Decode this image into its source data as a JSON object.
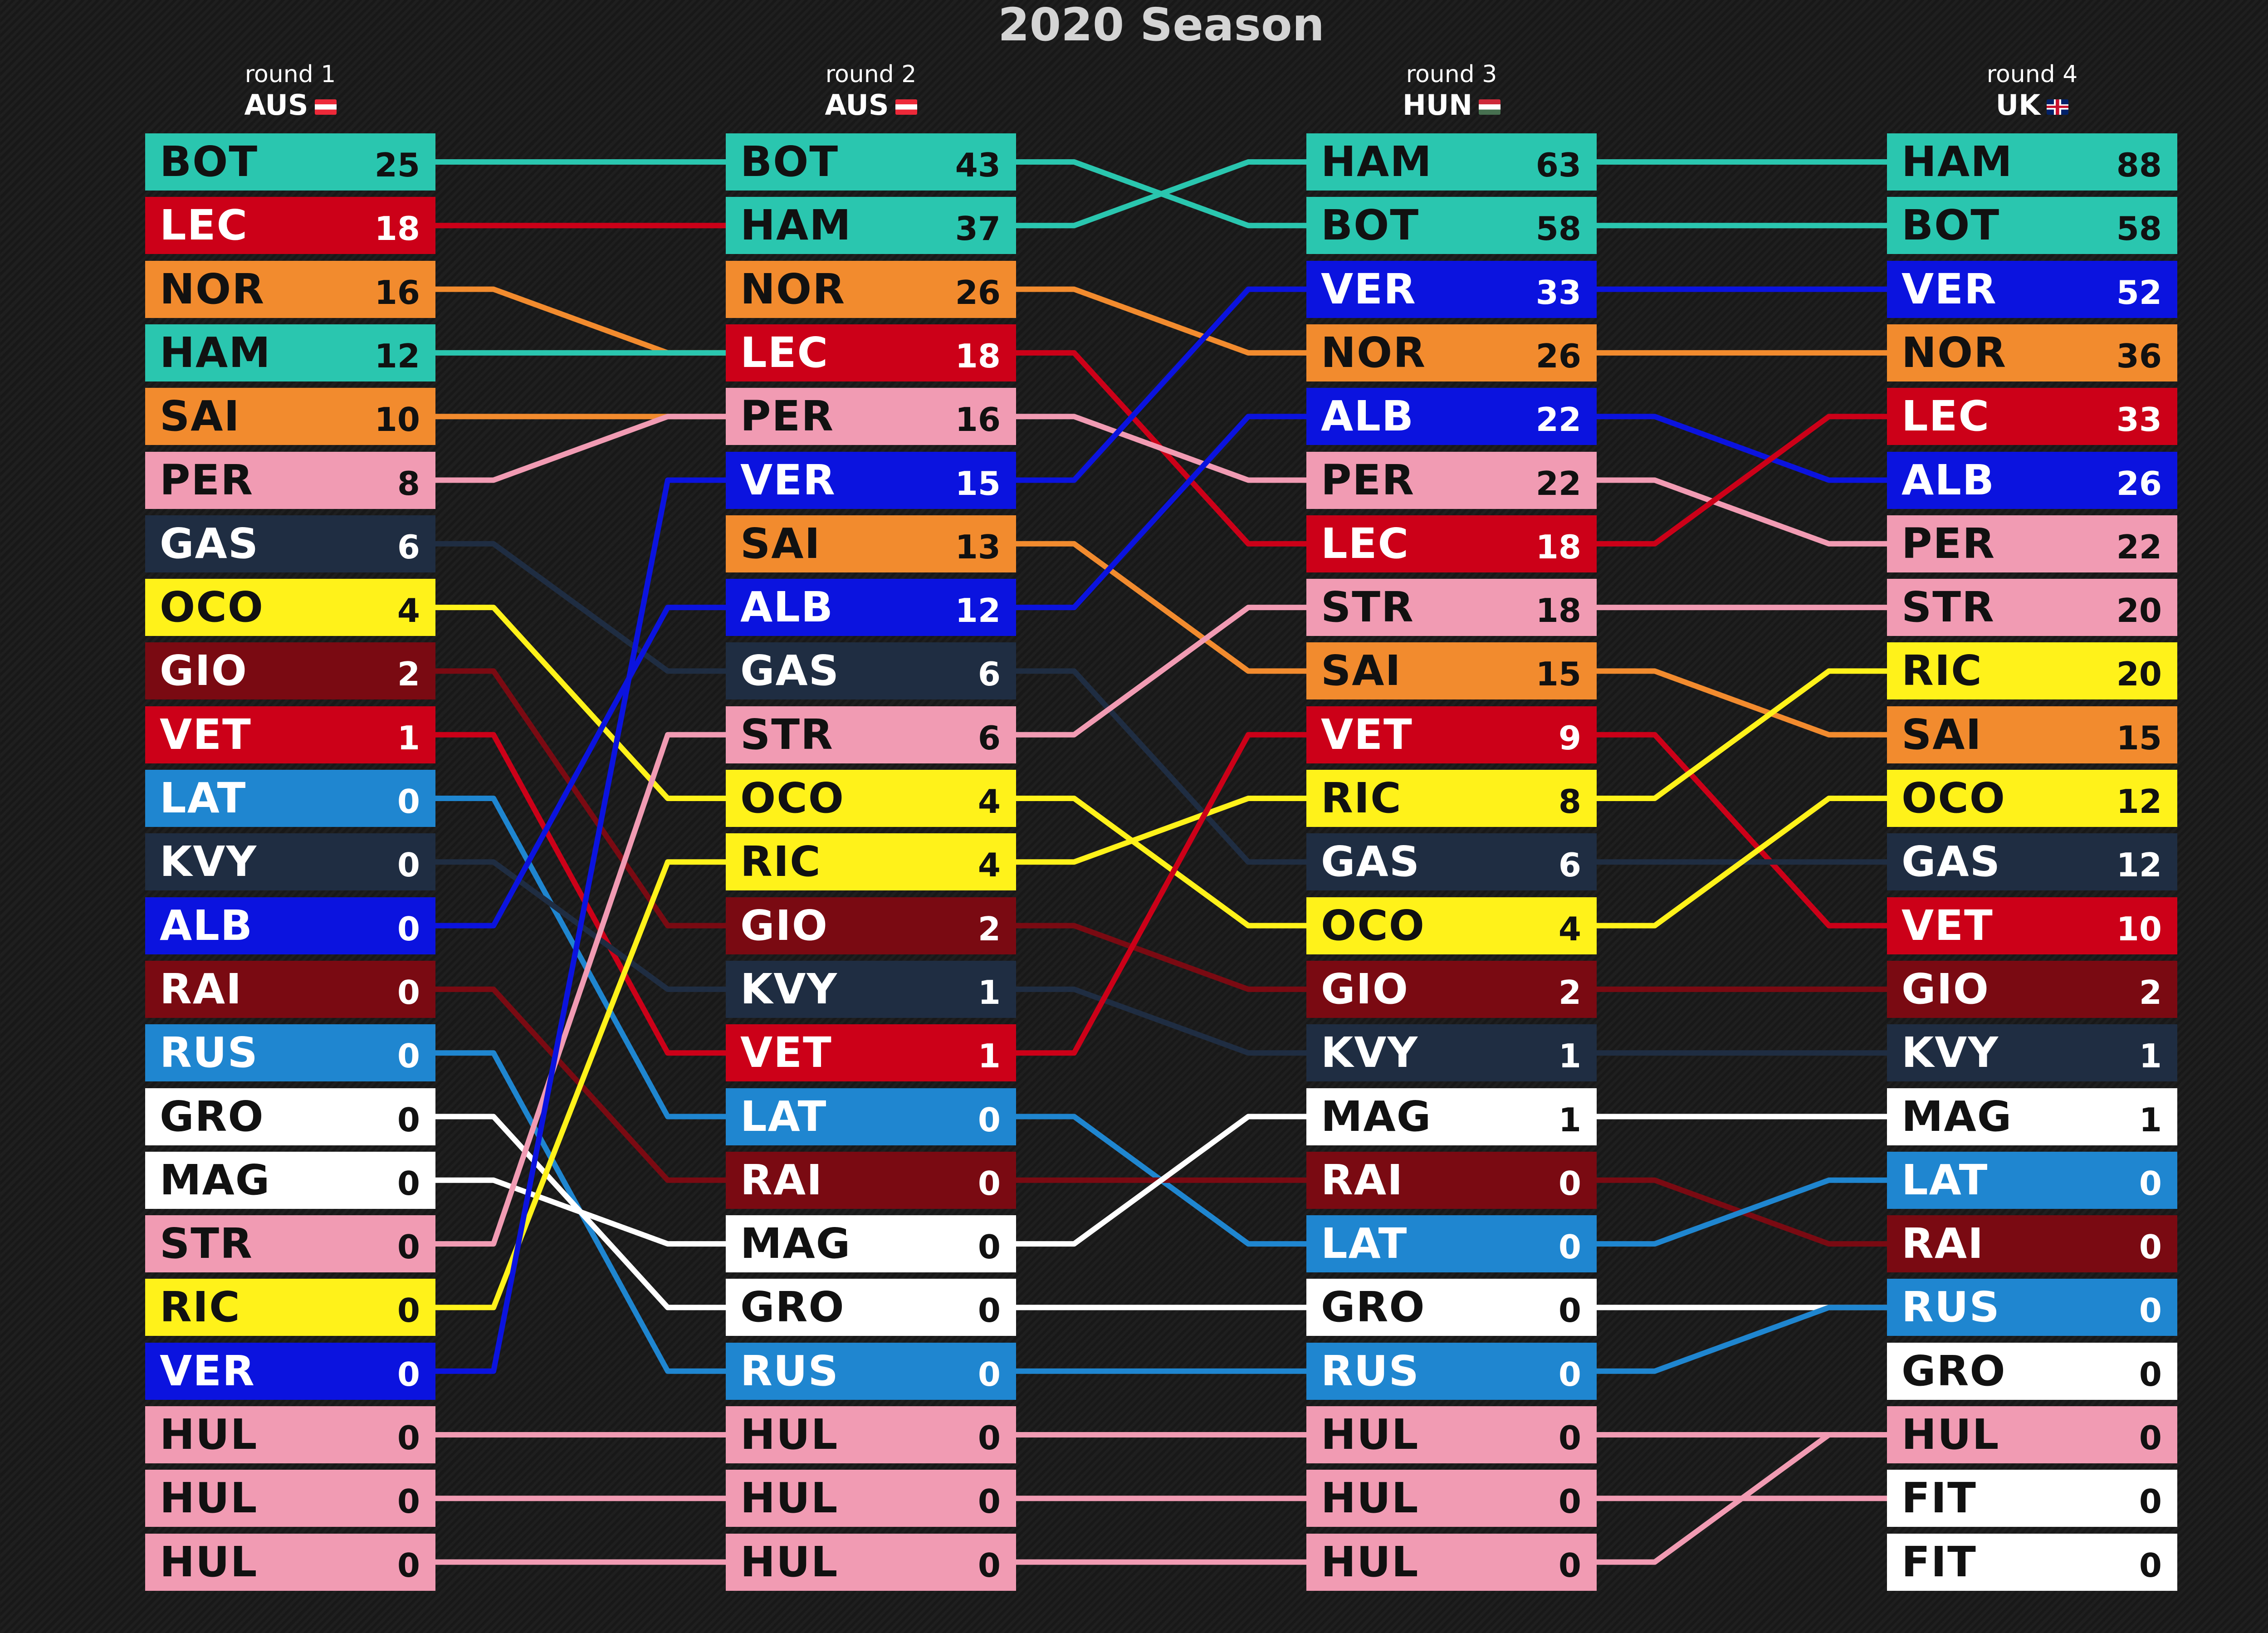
{
  "title": "2020 Season",
  "colors": {
    "BOT": "#2ac6af",
    "HAM": "#2ac6af",
    "LEC": "#cc0018",
    "VET": "#cc0018",
    "NOR": "#f28b2e",
    "SAI": "#f28b2e",
    "PER": "#f19bb3",
    "STR": "#f19bb3",
    "HUL": "#f19bb3",
    "GAS": "#1f2d42",
    "KVY": "#1f2d42",
    "OCO": "#fff21a",
    "RIC": "#fff21a",
    "GIO": "#7a0a12",
    "RAI": "#7a0a12",
    "LAT": "#1f86d0",
    "RUS": "#1f86d0",
    "ALB": "#0b13df",
    "VER": "#0b13df",
    "GRO": "#ffffff",
    "MAG": "#ffffff",
    "FIT": "#ffffff"
  },
  "dark_text_codes": [
    "BOT",
    "HAM",
    "NOR",
    "SAI",
    "PER",
    "STR",
    "HUL",
    "OCO",
    "RIC",
    "GRO",
    "MAG",
    "FIT"
  ],
  "chart_data": {
    "type": "table",
    "title": "2020 Season",
    "rounds": [
      {
        "round": "round 1",
        "gp": "AUS",
        "flag": "austria",
        "standings": [
          {
            "driver": "BOT",
            "points": 25
          },
          {
            "driver": "LEC",
            "points": 18
          },
          {
            "driver": "NOR",
            "points": 16
          },
          {
            "driver": "HAM",
            "points": 12
          },
          {
            "driver": "SAI",
            "points": 10
          },
          {
            "driver": "PER",
            "points": 8
          },
          {
            "driver": "GAS",
            "points": 6
          },
          {
            "driver": "OCO",
            "points": 4
          },
          {
            "driver": "GIO",
            "points": 2
          },
          {
            "driver": "VET",
            "points": 1
          },
          {
            "driver": "LAT",
            "points": 0
          },
          {
            "driver": "KVY",
            "points": 0
          },
          {
            "driver": "ALB",
            "points": 0
          },
          {
            "driver": "RAI",
            "points": 0
          },
          {
            "driver": "RUS",
            "points": 0
          },
          {
            "driver": "GRO",
            "points": 0
          },
          {
            "driver": "MAG",
            "points": 0
          },
          {
            "driver": "STR",
            "points": 0
          },
          {
            "driver": "RIC",
            "points": 0
          },
          {
            "driver": "VER",
            "points": 0
          },
          {
            "driver": "HUL",
            "points": 0
          },
          {
            "driver": "HUL",
            "points": 0
          },
          {
            "driver": "HUL",
            "points": 0
          }
        ]
      },
      {
        "round": "round 2",
        "gp": "AUS",
        "flag": "austria",
        "standings": [
          {
            "driver": "BOT",
            "points": 43
          },
          {
            "driver": "HAM",
            "points": 37
          },
          {
            "driver": "NOR",
            "points": 26
          },
          {
            "driver": "LEC",
            "points": 18
          },
          {
            "driver": "PER",
            "points": 16
          },
          {
            "driver": "VER",
            "points": 15
          },
          {
            "driver": "SAI",
            "points": 13
          },
          {
            "driver": "ALB",
            "points": 12
          },
          {
            "driver": "GAS",
            "points": 6
          },
          {
            "driver": "STR",
            "points": 6
          },
          {
            "driver": "OCO",
            "points": 4
          },
          {
            "driver": "RIC",
            "points": 4
          },
          {
            "driver": "GIO",
            "points": 2
          },
          {
            "driver": "KVY",
            "points": 1
          },
          {
            "driver": "VET",
            "points": 1
          },
          {
            "driver": "LAT",
            "points": 0
          },
          {
            "driver": "RAI",
            "points": 0
          },
          {
            "driver": "MAG",
            "points": 0
          },
          {
            "driver": "GRO",
            "points": 0
          },
          {
            "driver": "RUS",
            "points": 0
          },
          {
            "driver": "HUL",
            "points": 0
          },
          {
            "driver": "HUL",
            "points": 0
          },
          {
            "driver": "HUL",
            "points": 0
          }
        ]
      },
      {
        "round": "round 3",
        "gp": "HUN",
        "flag": "hungary",
        "standings": [
          {
            "driver": "HAM",
            "points": 63
          },
          {
            "driver": "BOT",
            "points": 58
          },
          {
            "driver": "VER",
            "points": 33
          },
          {
            "driver": "NOR",
            "points": 26
          },
          {
            "driver": "ALB",
            "points": 22
          },
          {
            "driver": "PER",
            "points": 22
          },
          {
            "driver": "LEC",
            "points": 18
          },
          {
            "driver": "STR",
            "points": 18
          },
          {
            "driver": "SAI",
            "points": 15
          },
          {
            "driver": "VET",
            "points": 9
          },
          {
            "driver": "RIC",
            "points": 8
          },
          {
            "driver": "GAS",
            "points": 6
          },
          {
            "driver": "OCO",
            "points": 4
          },
          {
            "driver": "GIO",
            "points": 2
          },
          {
            "driver": "KVY",
            "points": 1
          },
          {
            "driver": "MAG",
            "points": 1
          },
          {
            "driver": "RAI",
            "points": 0
          },
          {
            "driver": "LAT",
            "points": 0
          },
          {
            "driver": "GRO",
            "points": 0
          },
          {
            "driver": "RUS",
            "points": 0
          },
          {
            "driver": "HUL",
            "points": 0
          },
          {
            "driver": "HUL",
            "points": 0
          },
          {
            "driver": "HUL",
            "points": 0
          }
        ]
      },
      {
        "round": "round 4",
        "gp": "UK",
        "flag": "uk",
        "standings": [
          {
            "driver": "HAM",
            "points": 88
          },
          {
            "driver": "BOT",
            "points": 58
          },
          {
            "driver": "VER",
            "points": 52
          },
          {
            "driver": "NOR",
            "points": 36
          },
          {
            "driver": "LEC",
            "points": 33
          },
          {
            "driver": "ALB",
            "points": 26
          },
          {
            "driver": "PER",
            "points": 22
          },
          {
            "driver": "STR",
            "points": 20
          },
          {
            "driver": "RIC",
            "points": 20
          },
          {
            "driver": "SAI",
            "points": 15
          },
          {
            "driver": "OCO",
            "points": 12
          },
          {
            "driver": "GAS",
            "points": 12
          },
          {
            "driver": "VET",
            "points": 10
          },
          {
            "driver": "GIO",
            "points": 2
          },
          {
            "driver": "KVY",
            "points": 1
          },
          {
            "driver": "MAG",
            "points": 1
          },
          {
            "driver": "LAT",
            "points": 0
          },
          {
            "driver": "RAI",
            "points": 0
          },
          {
            "driver": "RUS",
            "points": 0
          },
          {
            "driver": "GRO",
            "points": 0
          },
          {
            "driver": "HUL",
            "points": 0
          },
          {
            "driver": "FIT",
            "points": 0
          },
          {
            "driver": "FIT",
            "points": 0
          }
        ]
      }
    ],
    "links": [
      [
        0,
        1,
        3,
        3,
        4,
        4,
        8,
        10,
        12,
        14,
        15,
        13,
        7,
        16,
        19,
        18,
        17,
        9,
        11,
        5,
        20,
        21,
        22
      ],
      [
        1,
        0,
        3,
        6,
        5,
        2,
        8,
        4,
        11,
        7,
        12,
        10,
        13,
        14,
        9,
        17,
        16,
        15,
        18,
        19,
        20,
        21,
        22
      ],
      [
        0,
        1,
        2,
        3,
        5,
        6,
        4,
        7,
        9,
        12,
        8,
        11,
        10,
        13,
        14,
        15,
        17,
        16,
        18,
        18,
        20,
        21,
        20
      ]
    ]
  }
}
